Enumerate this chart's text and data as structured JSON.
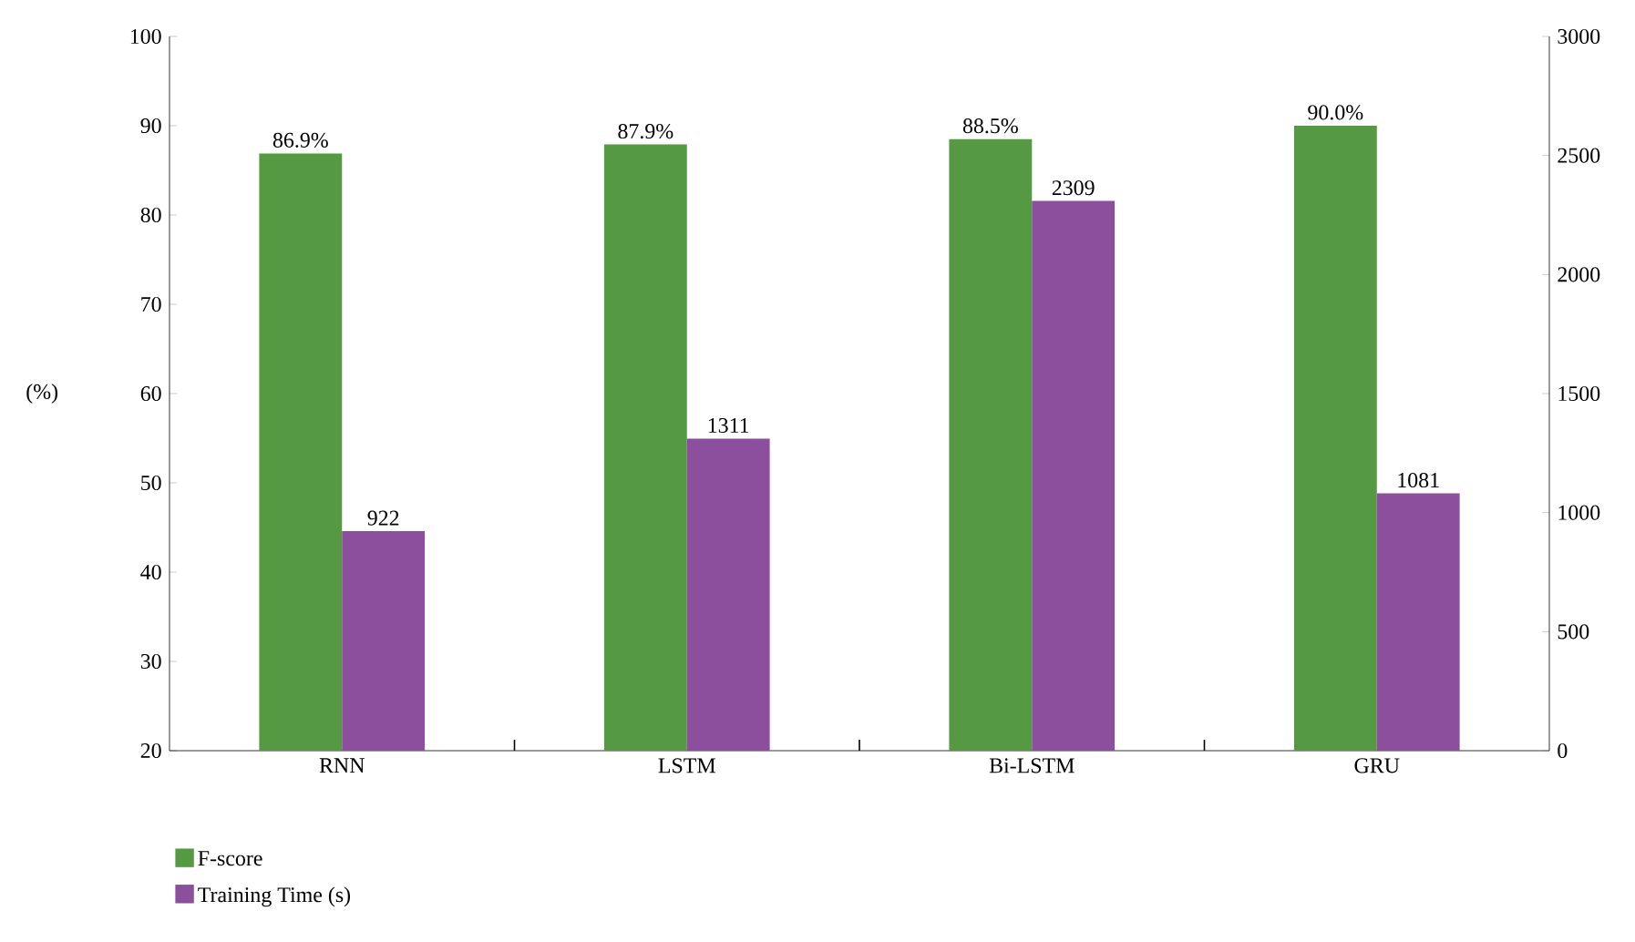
{
  "chart_data": {
    "type": "bar",
    "categories": [
      "RNN",
      "LSTM",
      "Bi-LSTM",
      "GRU"
    ],
    "series": [
      {
        "name": "F-score",
        "color": "#559a43",
        "values": [
          86.9,
          87.9,
          88.5,
          90.0
        ],
        "value_labels": [
          "86.9%",
          "87.9%",
          "88.5%",
          "90.0%"
        ]
      },
      {
        "name": "Training Time (s)",
        "color": "#8b4f9e",
        "values": [
          922,
          1311,
          2309,
          1081
        ],
        "value_labels": [
          "922",
          "1311",
          "2309",
          "1081"
        ],
        "axis": "y2"
      }
    ],
    "ylabel": "(%)",
    "ylim": [
      20,
      100
    ],
    "yticks": [
      20,
      30,
      40,
      50,
      60,
      70,
      80,
      90,
      100
    ],
    "y2lim": [
      0,
      3000
    ],
    "y2ticks": [
      0,
      500,
      1000,
      1500,
      2000,
      2500,
      3000
    ],
    "legend": "bottom left"
  }
}
